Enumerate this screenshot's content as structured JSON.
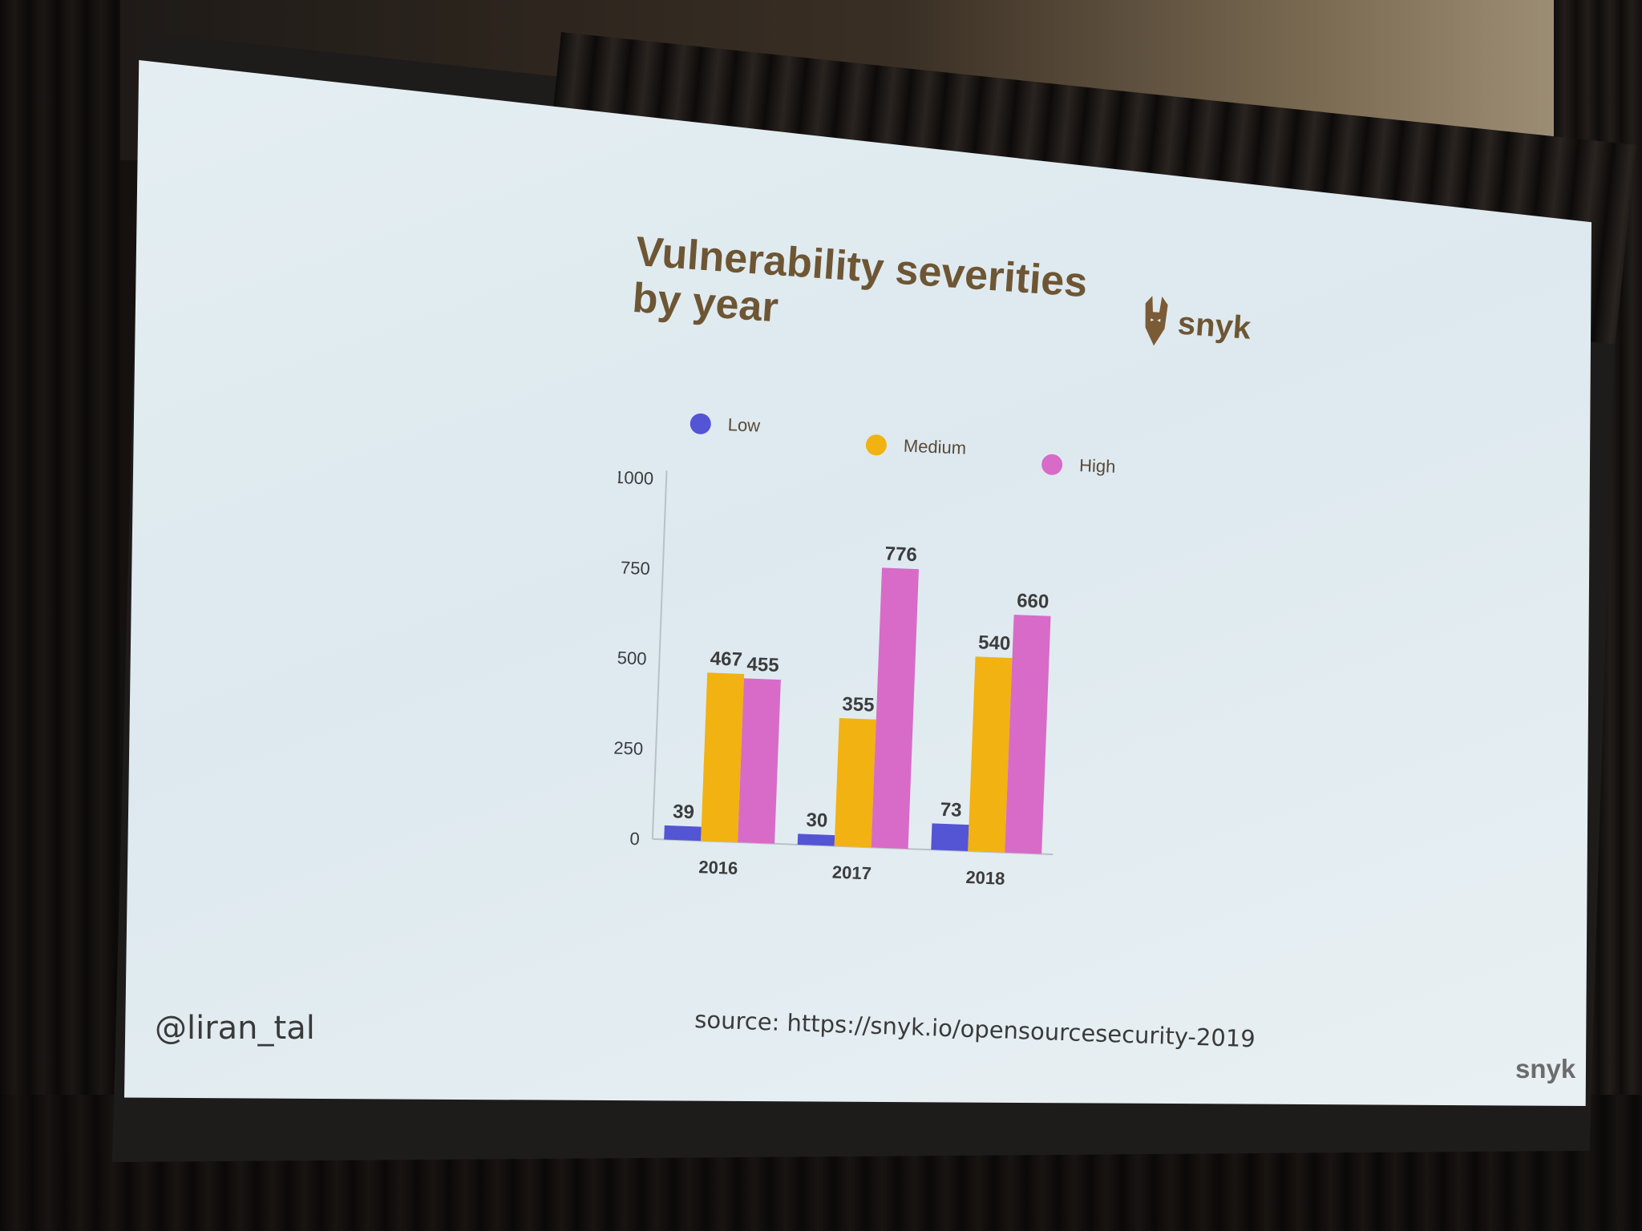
{
  "slide": {
    "title_line1": "Vulnerability severities",
    "title_line2": "by year",
    "brand": "snyk",
    "handle": "@liran_tal",
    "source_label": "source:",
    "source_url": "https://snyk.io/opensourcesecurity-2019",
    "footer_brand": "snyk"
  },
  "colors": {
    "title": "#6e5634",
    "low": "#5355d4",
    "medium": "#f2b212",
    "high": "#d86bc8"
  },
  "chart_data": {
    "type": "bar",
    "title": "Vulnerability severities by year",
    "categories": [
      "2016",
      "2017",
      "2018"
    ],
    "series": [
      {
        "name": "Low",
        "values": [
          39,
          30,
          73
        ],
        "color": "#5355d4"
      },
      {
        "name": "Medium",
        "values": [
          467,
          355,
          540
        ],
        "color": "#f2b212"
      },
      {
        "name": "High",
        "values": [
          455,
          776,
          660
        ],
        "color": "#d86bc8"
      }
    ],
    "ylim": [
      0,
      1000
    ],
    "yticks": [
      0,
      250,
      500,
      750,
      1000
    ],
    "xlabel": "",
    "ylabel": "",
    "grid": false,
    "legend": "top",
    "data_labels": true
  }
}
